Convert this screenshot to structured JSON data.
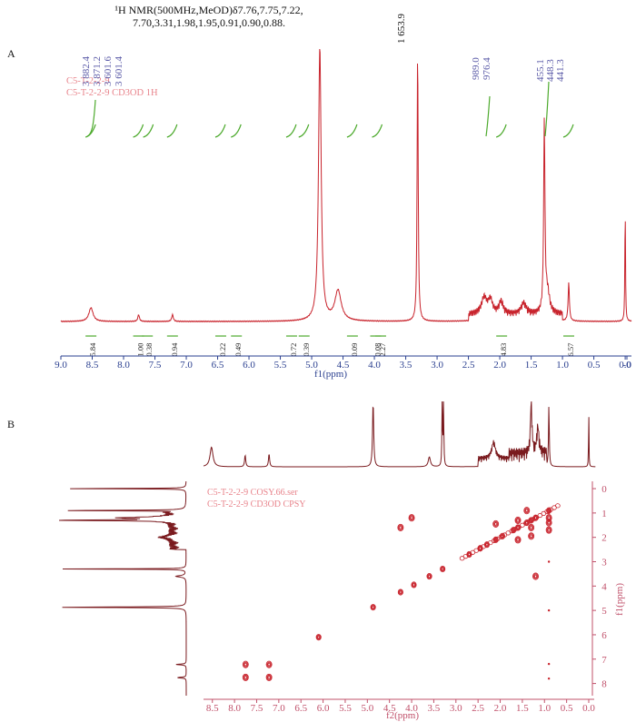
{
  "header": {
    "line1": "¹H NMR(500MHz,MeOD)δ7.76,7.75,7.22,",
    "line2": "7.70,3.31,1.98,1.95,0.91,0.90,0.88."
  },
  "colors": {
    "spectrum_red": "#c8232c",
    "dark_red": "#7a1a1e",
    "peak_label": "#5b5ba8",
    "integral_green": "#4daa2d",
    "axis_blue": "#2a3f8f",
    "title_pink": "#e8838b",
    "cosy_axis_pink": "#c0506a"
  },
  "chart_data": [
    {
      "panel": "A",
      "type": "line",
      "title_lines": [
        "C5-T-2-2-9",
        "C5-T-2-2-9 CD3OD 1H"
      ],
      "xlabel": "f1(ppm)",
      "xlim": [
        9.0,
        -0.1
      ],
      "x_reversed": true,
      "ticks": [
        "9.0",
        "8.5",
        "8.0",
        "7.5",
        "7.0",
        "6.5",
        "6.0",
        "5.5",
        "5.0",
        "4.5",
        "4.0",
        "3.5",
        "3.0",
        "2.5",
        "2.0",
        "1.5",
        "1.0",
        "0.5",
        "0.0",
        "-0"
      ],
      "peaks": [
        {
          "ppm": 8.52,
          "height": 0.05,
          "width": 0.04
        },
        {
          "ppm": 7.76,
          "height": 0.025,
          "width": 0.015
        },
        {
          "ppm": 7.22,
          "height": 0.025,
          "width": 0.015
        },
        {
          "ppm": 4.87,
          "height": 1.0,
          "width": 0.025
        },
        {
          "ppm": 4.58,
          "height": 0.11,
          "width": 0.06
        },
        {
          "ppm": 3.31,
          "height": 1.0,
          "width": 0.01
        },
        {
          "ppm": 2.25,
          "height": 0.06,
          "width": 0.05
        },
        {
          "ppm": 2.15,
          "height": 0.05,
          "width": 0.04
        },
        {
          "ppm": 1.98,
          "height": 0.045,
          "width": 0.04
        },
        {
          "ppm": 1.62,
          "height": 0.04,
          "width": 0.05
        },
        {
          "ppm": 1.29,
          "height": 0.69,
          "width": 0.012
        },
        {
          "ppm": 1.24,
          "height": 0.08,
          "width": 0.04
        },
        {
          "ppm": 0.9,
          "height": 0.14,
          "width": 0.012
        },
        {
          "ppm": 0.0,
          "height": 0.43,
          "width": 0.006
        }
      ],
      "peak_labels_left": [
        "3 882.4",
        "3 871.2",
        "3 601.6",
        "3 601.4"
      ],
      "peak_label_center": "1 653.9",
      "peak_labels_right_a": [
        "989.0",
        "976.4"
      ],
      "peak_labels_right_b": [
        "455.1",
        "448.3",
        "441.3"
      ],
      "integrals": [
        {
          "ppm": 8.52,
          "value": "5.84"
        },
        {
          "ppm": 7.76,
          "value": "1.00"
        },
        {
          "ppm": 7.62,
          "value": "0.38"
        },
        {
          "ppm": 7.22,
          "value": "0.94"
        },
        {
          "ppm": 6.45,
          "value": "0.22"
        },
        {
          "ppm": 6.2,
          "value": "0.49"
        },
        {
          "ppm": 5.32,
          "value": "0.72"
        },
        {
          "ppm": 5.12,
          "value": "0.39"
        },
        {
          "ppm": 4.35,
          "value": "0.09"
        },
        {
          "ppm": 3.98,
          "value": "0.08"
        },
        {
          "ppm": 3.9,
          "value": "2.27"
        },
        {
          "ppm": 1.97,
          "value": "4.83"
        },
        {
          "ppm": 0.9,
          "value": "6.57"
        }
      ]
    },
    {
      "panel": "B",
      "type": "scatter",
      "title_lines": [
        "C5-T-2-2-9 COSY.66.ser",
        "C5-T-2-2-9 CD3OD CPSY"
      ],
      "xlabel": "f2(ppm)",
      "ylabel": "f1(ppm)",
      "xlim": [
        8.7,
        0.0
      ],
      "ylim": [
        -0.3,
        8.5
      ],
      "xticks": [
        "8.5",
        "8.0",
        "7.5",
        "7.0",
        "6.5",
        "6.0",
        "5.5",
        "5.0",
        "4.5",
        "4.0",
        "3.5",
        "3.0",
        "2.5",
        "2.0",
        "1.5",
        "1.0",
        "0.5",
        "0.0"
      ],
      "yticks": [
        "0",
        "1",
        "2",
        "3",
        "4",
        "5",
        "6",
        "7",
        "8"
      ],
      "diagonal": [
        [
          4.87,
          4.87
        ],
        [
          4.25,
          4.25
        ],
        [
          3.95,
          3.95
        ],
        [
          3.6,
          3.6
        ],
        [
          3.3,
          3.3
        ],
        [
          2.7,
          2.7
        ],
        [
          2.45,
          2.45
        ],
        [
          2.3,
          2.3
        ],
        [
          2.1,
          2.1
        ],
        [
          1.95,
          1.95
        ],
        [
          1.7,
          1.7
        ],
        [
          1.6,
          1.6
        ],
        [
          1.4,
          1.4
        ],
        [
          1.3,
          1.3
        ],
        [
          1.2,
          1.2
        ],
        [
          0.9,
          0.9
        ],
        [
          6.1,
          6.1
        ]
      ],
      "cross_peaks": [
        [
          7.75,
          7.22
        ],
        [
          7.22,
          7.75
        ],
        [
          7.75,
          7.75
        ],
        [
          7.22,
          7.22
        ],
        [
          4.25,
          1.6
        ],
        [
          4.0,
          1.2
        ],
        [
          1.3,
          1.6
        ],
        [
          1.2,
          3.6
        ],
        [
          0.9,
          1.4
        ],
        [
          0.9,
          1.7
        ],
        [
          1.4,
          0.9
        ],
        [
          1.6,
          1.3
        ],
        [
          2.1,
          1.45
        ],
        [
          1.6,
          2.1
        ],
        [
          1.3,
          1.95
        ],
        [
          0.9,
          1.2
        ]
      ]
    }
  ],
  "panel_labels": {
    "a": "A",
    "b": "B"
  }
}
